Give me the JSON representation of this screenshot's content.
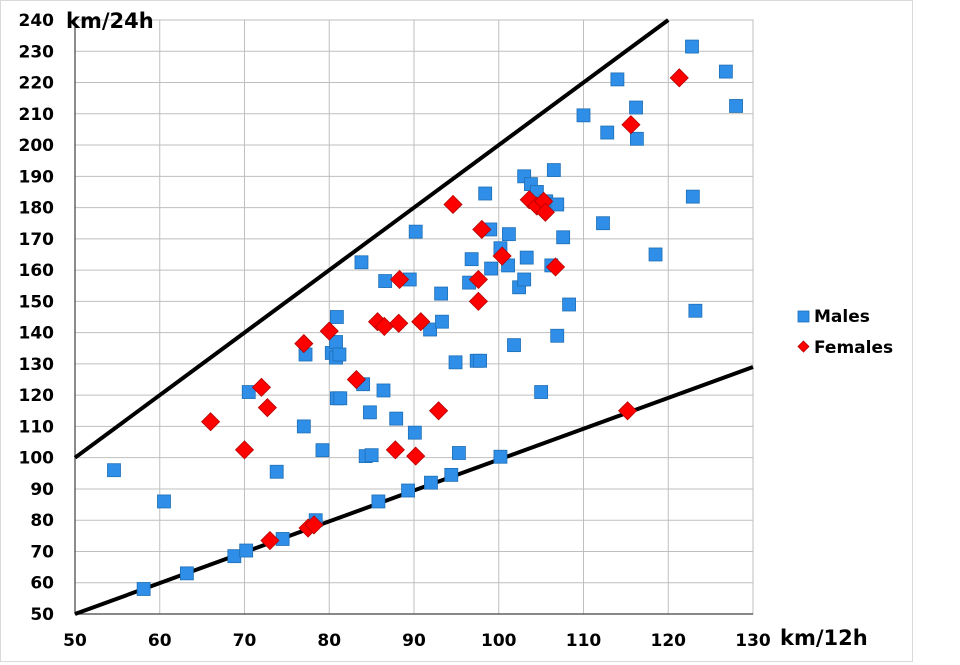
{
  "chart_data": {
    "type": "scatter",
    "title": "",
    "xlabel": "km/12h",
    "ylabel": "km/24h",
    "xlim": [
      50,
      130
    ],
    "ylim": [
      50,
      240
    ],
    "xticks": [
      50,
      60,
      70,
      80,
      90,
      100,
      110,
      120,
      130
    ],
    "yticks": [
      50,
      60,
      70,
      80,
      90,
      100,
      110,
      120,
      130,
      140,
      150,
      160,
      170,
      180,
      190,
      200,
      210,
      220,
      230,
      240
    ],
    "grid": true,
    "legend_position": "right",
    "colors": {
      "males": "#2e8ee8",
      "females": "#ff0000",
      "reference_lines": "#000000",
      "grid": "#bfbfbf"
    },
    "reference_lines": [
      {
        "name": "upper",
        "points": [
          [
            50,
            100
          ],
          [
            120,
            240
          ]
        ]
      },
      {
        "name": "lower",
        "points": [
          [
            50,
            50
          ],
          [
            130,
            129
          ]
        ]
      }
    ],
    "series": [
      {
        "name": "Males",
        "marker": "square",
        "points": [
          [
            54.6,
            96
          ],
          [
            58.1,
            58
          ],
          [
            60.5,
            86
          ],
          [
            63.2,
            63
          ],
          [
            68.8,
            68.5
          ],
          [
            70.2,
            70.3
          ],
          [
            70.5,
            121
          ],
          [
            73.8,
            95.5
          ],
          [
            74.5,
            74
          ],
          [
            77.0,
            110
          ],
          [
            77.2,
            133
          ],
          [
            78.4,
            80
          ],
          [
            79.2,
            102.4
          ],
          [
            80.3,
            133.5
          ],
          [
            80.8,
            137
          ],
          [
            80.9,
            145
          ],
          [
            80.8,
            132
          ],
          [
            81.2,
            133
          ],
          [
            80.9,
            119
          ],
          [
            81.3,
            119
          ],
          [
            83.8,
            162.5
          ],
          [
            84.0,
            123.5
          ],
          [
            84.3,
            100.5
          ],
          [
            84.8,
            114.5
          ],
          [
            85.0,
            100.8
          ],
          [
            85.8,
            86
          ],
          [
            86.4,
            121.5
          ],
          [
            86.6,
            156.5
          ],
          [
            87.9,
            112.5
          ],
          [
            89.3,
            89.5
          ],
          [
            89.5,
            157
          ],
          [
            90.2,
            172.3
          ],
          [
            90.1,
            108
          ],
          [
            91.9,
            141
          ],
          [
            92.0,
            92
          ],
          [
            93.2,
            152.5
          ],
          [
            93.3,
            143.5
          ],
          [
            94.4,
            94.5
          ],
          [
            94.9,
            130.5
          ],
          [
            95.3,
            101.5
          ],
          [
            96.5,
            156
          ],
          [
            96.8,
            163.5
          ],
          [
            97.4,
            131
          ],
          [
            97.8,
            131
          ],
          [
            98.4,
            184.5
          ],
          [
            99.0,
            173
          ],
          [
            99.1,
            160.5
          ],
          [
            100.2,
            100.3
          ],
          [
            100.2,
            167
          ],
          [
            101.2,
            171.5
          ],
          [
            101.1,
            161.5
          ],
          [
            101.8,
            136
          ],
          [
            102.4,
            154.5
          ],
          [
            103.0,
            157
          ],
          [
            103.0,
            190
          ],
          [
            103.3,
            164
          ],
          [
            103.8,
            187.5
          ],
          [
            104.5,
            185
          ],
          [
            105.0,
            121
          ],
          [
            105.6,
            182
          ],
          [
            106.2,
            161.5
          ],
          [
            106.5,
            192
          ],
          [
            106.9,
            181
          ],
          [
            106.9,
            139
          ],
          [
            107.6,
            170.5
          ],
          [
            108.3,
            149
          ],
          [
            110.0,
            209.5
          ],
          [
            112.3,
            175
          ],
          [
            112.8,
            204
          ],
          [
            114.0,
            221
          ],
          [
            116.2,
            212
          ],
          [
            116.3,
            202
          ],
          [
            118.5,
            165
          ],
          [
            122.8,
            231.5
          ],
          [
            122.9,
            183.5
          ],
          [
            123.2,
            147
          ],
          [
            126.8,
            223.5
          ],
          [
            128.0,
            212.5
          ]
        ]
      },
      {
        "name": "Females",
        "marker": "diamond",
        "points": [
          [
            66.0,
            111.5
          ],
          [
            70.0,
            102.5
          ],
          [
            72.0,
            122.5
          ],
          [
            72.7,
            116
          ],
          [
            73.0,
            73.5
          ],
          [
            77.0,
            136.5
          ],
          [
            77.5,
            77.5
          ],
          [
            78.2,
            78.5
          ],
          [
            80.0,
            140.5
          ],
          [
            83.2,
            125
          ],
          [
            85.7,
            143.5
          ],
          [
            86.5,
            142
          ],
          [
            87.8,
            102.5
          ],
          [
            88.2,
            143
          ],
          [
            88.3,
            157
          ],
          [
            90.2,
            100.5
          ],
          [
            90.8,
            143.5
          ],
          [
            92.9,
            115
          ],
          [
            94.6,
            181
          ],
          [
            97.6,
            157
          ],
          [
            97.6,
            150
          ],
          [
            98.0,
            173
          ],
          [
            100.4,
            164.5
          ],
          [
            103.6,
            182.5
          ],
          [
            104.5,
            180.5
          ],
          [
            105.3,
            182
          ],
          [
            105.5,
            178.5
          ],
          [
            106.7,
            161
          ],
          [
            115.2,
            115
          ],
          [
            115.6,
            206.5
          ],
          [
            121.3,
            221.5
          ]
        ]
      }
    ]
  }
}
